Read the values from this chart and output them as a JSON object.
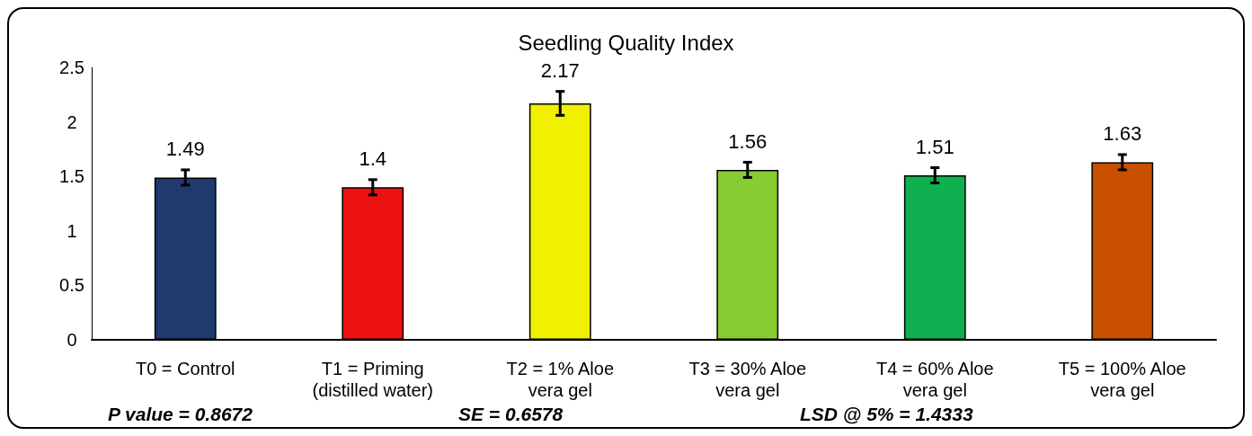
{
  "chart_data": {
    "type": "bar",
    "title": "Seedling Quality Index",
    "categories": [
      "T0 = Control",
      "T1 = Priming\n(distilled water)",
      "T2 = 1% Aloe\nvera gel",
      "T3 = 30% Aloe\nvera gel",
      "T4 = 60% Aloe\nvera gel",
      "T5 = 100% Aloe\nvera gel"
    ],
    "values": [
      1.49,
      1.4,
      2.17,
      1.56,
      1.51,
      1.63
    ],
    "errors": [
      0.07,
      0.07,
      0.11,
      0.07,
      0.07,
      0.07
    ],
    "colors": [
      "#1f3a6e",
      "#ee1111",
      "#f0f000",
      "#88cc33",
      "#10b050",
      "#c85000"
    ],
    "ylim": [
      0,
      2.5
    ],
    "yticks": [
      0,
      0.5,
      1,
      1.5,
      2,
      2.5
    ],
    "grid": false,
    "data_labels": true,
    "annotations": [
      "P value = 0.8672",
      "SE = 0.6578",
      "LSD @ 5% = 1.4333"
    ]
  }
}
